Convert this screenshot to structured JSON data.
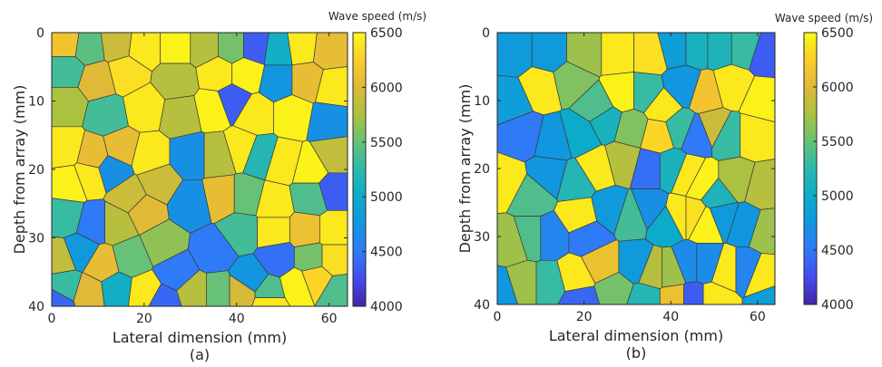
{
  "chart_data": [
    {
      "type": "heatmap",
      "panel_label": "(a)",
      "xlabel": "Lateral dimension (mm)",
      "ylabel": "Depth from array (mm)",
      "xlim": [
        0,
        64
      ],
      "ylim": [
        0,
        40
      ],
      "y_reversed": true,
      "xticks": [
        "0",
        "20",
        "40",
        "60"
      ],
      "yticks": [
        "0",
        "10",
        "20",
        "30",
        "40"
      ],
      "colorbar": {
        "title": "Wave speed (m/s)",
        "range": [
          4000,
          6500
        ],
        "ticks": [
          "4000",
          "4500",
          "5000",
          "5500",
          "6000",
          "6500"
        ],
        "colormap": "parula"
      },
      "cells": [
        {
          "x": 3,
          "y": 1.5,
          "v": 6150
        },
        {
          "x": 8,
          "y": 2,
          "v": 5450
        },
        {
          "x": 14,
          "y": 1.5,
          "v": 5900
        },
        {
          "x": 20,
          "y": 2,
          "v": 6400
        },
        {
          "x": 27,
          "y": 2,
          "v": 6450
        },
        {
          "x": 33,
          "y": 2,
          "v": 5800
        },
        {
          "x": 39,
          "y": 2,
          "v": 5550
        },
        {
          "x": 44,
          "y": 2,
          "v": 4350
        },
        {
          "x": 49,
          "y": 2.5,
          "v": 5050
        },
        {
          "x": 54,
          "y": 2,
          "v": 6400
        },
        {
          "x": 60,
          "y": 2.5,
          "v": 6050
        },
        {
          "x": 3,
          "y": 5.5,
          "v": 5350
        },
        {
          "x": 10,
          "y": 7,
          "v": 6000
        },
        {
          "x": 16,
          "y": 6,
          "v": 6350
        },
        {
          "x": 27,
          "y": 7,
          "v": 5800
        },
        {
          "x": 36,
          "y": 6,
          "v": 6400
        },
        {
          "x": 42,
          "y": 6,
          "v": 6450
        },
        {
          "x": 49,
          "y": 7,
          "v": 4750
        },
        {
          "x": 55,
          "y": 7,
          "v": 6050
        },
        {
          "x": 61,
          "y": 8,
          "v": 6400
        },
        {
          "x": 3,
          "y": 10.5,
          "v": 5750
        },
        {
          "x": 12,
          "y": 12,
          "v": 5350
        },
        {
          "x": 20,
          "y": 11,
          "v": 6400
        },
        {
          "x": 28,
          "y": 12,
          "v": 5800
        },
        {
          "x": 35,
          "y": 11,
          "v": 6450
        },
        {
          "x": 39,
          "y": 10,
          "v": 4350
        },
        {
          "x": 44,
          "y": 12,
          "v": 6400
        },
        {
          "x": 52,
          "y": 12,
          "v": 6450
        },
        {
          "x": 60,
          "y": 13,
          "v": 4700
        },
        {
          "x": 3,
          "y": 17,
          "v": 6400
        },
        {
          "x": 9,
          "y": 18,
          "v": 6050
        },
        {
          "x": 15,
          "y": 17,
          "v": 6050
        },
        {
          "x": 21,
          "y": 18,
          "v": 6400
        },
        {
          "x": 30,
          "y": 18,
          "v": 4700
        },
        {
          "x": 36,
          "y": 18,
          "v": 5800
        },
        {
          "x": 41,
          "y": 17,
          "v": 6400
        },
        {
          "x": 45,
          "y": 18,
          "v": 5200
        },
        {
          "x": 50,
          "y": 19,
          "v": 6400
        },
        {
          "x": 56,
          "y": 20,
          "v": 6450
        },
        {
          "x": 61,
          "y": 18,
          "v": 5850
        },
        {
          "x": 4,
          "y": 22,
          "v": 6450
        },
        {
          "x": 8,
          "y": 21,
          "v": 6400
        },
        {
          "x": 13,
          "y": 20,
          "v": 4700
        },
        {
          "x": 17,
          "y": 24,
          "v": 5900
        },
        {
          "x": 23,
          "y": 22,
          "v": 5900
        },
        {
          "x": 30,
          "y": 25,
          "v": 4700
        },
        {
          "x": 37,
          "y": 24,
          "v": 6050
        },
        {
          "x": 42,
          "y": 24,
          "v": 5500
        },
        {
          "x": 48,
          "y": 25,
          "v": 6400
        },
        {
          "x": 56,
          "y": 24,
          "v": 5400
        },
        {
          "x": 61,
          "y": 23,
          "v": 4350
        },
        {
          "x": 3,
          "y": 27,
          "v": 5300
        },
        {
          "x": 9,
          "y": 28,
          "v": 4500
        },
        {
          "x": 14,
          "y": 28,
          "v": 5800
        },
        {
          "x": 20,
          "y": 26,
          "v": 6000
        },
        {
          "x": 24,
          "y": 31,
          "v": 5650
        },
        {
          "x": 35,
          "y": 32,
          "v": 4500
        },
        {
          "x": 41,
          "y": 29,
          "v": 5350
        },
        {
          "x": 48,
          "y": 29,
          "v": 6400
        },
        {
          "x": 55,
          "y": 29,
          "v": 6100
        },
        {
          "x": 61,
          "y": 29,
          "v": 6400
        },
        {
          "x": 2,
          "y": 33,
          "v": 5850
        },
        {
          "x": 6,
          "y": 32,
          "v": 4800
        },
        {
          "x": 11,
          "y": 34,
          "v": 6050
        },
        {
          "x": 17,
          "y": 33,
          "v": 5500
        },
        {
          "x": 27,
          "y": 35,
          "v": 4500
        },
        {
          "x": 36,
          "y": 38,
          "v": 5500
        },
        {
          "x": 43,
          "y": 36,
          "v": 4750
        },
        {
          "x": 49,
          "y": 33,
          "v": 4450
        },
        {
          "x": 56,
          "y": 33,
          "v": 5550
        },
        {
          "x": 61,
          "y": 33,
          "v": 6350
        },
        {
          "x": 3,
          "y": 37,
          "v": 5300
        },
        {
          "x": 8,
          "y": 38,
          "v": 6000
        },
        {
          "x": 14,
          "y": 37.5,
          "v": 5050
        },
        {
          "x": 20,
          "y": 38,
          "v": 6400
        },
        {
          "x": 31,
          "y": 38,
          "v": 5800
        },
        {
          "x": 41,
          "y": 38,
          "v": 5950
        },
        {
          "x": 47,
          "y": 38,
          "v": 5400
        },
        {
          "x": 53,
          "y": 37,
          "v": 6450
        },
        {
          "x": 57,
          "y": 36,
          "v": 6300
        },
        {
          "x": 62,
          "y": 38,
          "v": 5400
        },
        {
          "x": 1,
          "y": 39.5,
          "v": 4400
        },
        {
          "x": 24,
          "y": 39.5,
          "v": 4400
        },
        {
          "x": 47,
          "y": 39.5,
          "v": 6400
        }
      ]
    },
    {
      "type": "heatmap",
      "panel_label": "(b)",
      "xlabel": "Lateral dimension (mm)",
      "ylabel": "Depth from array (mm)",
      "xlim": [
        0,
        64
      ],
      "ylim": [
        0,
        40
      ],
      "y_reversed": true,
      "xticks": [
        "0",
        "20",
        "40",
        "60"
      ],
      "yticks": [
        "0",
        "10",
        "20",
        "30",
        "40"
      ],
      "colorbar": {
        "title": "Wave speed (m/s)",
        "range": [
          4000,
          6500
        ],
        "ticks": [
          "4000",
          "4500",
          "5000",
          "5500",
          "6000",
          "6500"
        ],
        "colormap": "parula"
      },
      "cells": [
        {
          "x": 4,
          "y": 3,
          "v": 4800
        },
        {
          "x": 12,
          "y": 3,
          "v": 4800
        },
        {
          "x": 20,
          "y": 3,
          "v": 5700
        },
        {
          "x": 28,
          "y": 3,
          "v": 6400
        },
        {
          "x": 35,
          "y": 3,
          "v": 6350
        },
        {
          "x": 41,
          "y": 2,
          "v": 4850
        },
        {
          "x": 46,
          "y": 2,
          "v": 5100
        },
        {
          "x": 51,
          "y": 2,
          "v": 5150
        },
        {
          "x": 57,
          "y": 2,
          "v": 5300
        },
        {
          "x": 62,
          "y": 3,
          "v": 4350
        },
        {
          "x": 3,
          "y": 10,
          "v": 4850
        },
        {
          "x": 10,
          "y": 8,
          "v": 6400
        },
        {
          "x": 17,
          "y": 7,
          "v": 5600
        },
        {
          "x": 23,
          "y": 11,
          "v": 5400
        },
        {
          "x": 29,
          "y": 9,
          "v": 6450
        },
        {
          "x": 34,
          "y": 9,
          "v": 5300
        },
        {
          "x": 38,
          "y": 11,
          "v": 6400
        },
        {
          "x": 43,
          "y": 8,
          "v": 4750
        },
        {
          "x": 48,
          "y": 9,
          "v": 6150
        },
        {
          "x": 54,
          "y": 8,
          "v": 6400
        },
        {
          "x": 61,
          "y": 10,
          "v": 6450
        },
        {
          "x": 2,
          "y": 22,
          "v": 6400
        },
        {
          "x": 6,
          "y": 15,
          "v": 4500
        },
        {
          "x": 13,
          "y": 16,
          "v": 4750
        },
        {
          "x": 19,
          "y": 15,
          "v": 5000
        },
        {
          "x": 25,
          "y": 13,
          "v": 5100
        },
        {
          "x": 31,
          "y": 14,
          "v": 5600
        },
        {
          "x": 37,
          "y": 15,
          "v": 6300
        },
        {
          "x": 42,
          "y": 14,
          "v": 5300
        },
        {
          "x": 46,
          "y": 15,
          "v": 4500
        },
        {
          "x": 50,
          "y": 14,
          "v": 5900
        },
        {
          "x": 53,
          "y": 15,
          "v": 5300
        },
        {
          "x": 59,
          "y": 15,
          "v": 6400
        },
        {
          "x": 8,
          "y": 24,
          "v": 5400
        },
        {
          "x": 12,
          "y": 21,
          "v": 4750
        },
        {
          "x": 18,
          "y": 22,
          "v": 5200
        },
        {
          "x": 23,
          "y": 20,
          "v": 6400
        },
        {
          "x": 29,
          "y": 19,
          "v": 5800
        },
        {
          "x": 35,
          "y": 20,
          "v": 4450
        },
        {
          "x": 40,
          "y": 20,
          "v": 5100
        },
        {
          "x": 44,
          "y": 21,
          "v": 6400
        },
        {
          "x": 47,
          "y": 22,
          "v": 6450
        },
        {
          "x": 51,
          "y": 24,
          "v": 5150
        },
        {
          "x": 55,
          "y": 22,
          "v": 5750
        },
        {
          "x": 61,
          "y": 23,
          "v": 5800
        },
        {
          "x": 3,
          "y": 31,
          "v": 5700
        },
        {
          "x": 8,
          "y": 30,
          "v": 5400
        },
        {
          "x": 12,
          "y": 30,
          "v": 4600
        },
        {
          "x": 19,
          "y": 27,
          "v": 6400
        },
        {
          "x": 21,
          "y": 30,
          "v": 4500
        },
        {
          "x": 26,
          "y": 26,
          "v": 4800
        },
        {
          "x": 31,
          "y": 27,
          "v": 5350
        },
        {
          "x": 35,
          "y": 26,
          "v": 4700
        },
        {
          "x": 39,
          "y": 28,
          "v": 5000
        },
        {
          "x": 42,
          "y": 27,
          "v": 6400
        },
        {
          "x": 45,
          "y": 27,
          "v": 6350
        },
        {
          "x": 48,
          "y": 28,
          "v": 6450
        },
        {
          "x": 52,
          "y": 27,
          "v": 4800
        },
        {
          "x": 57,
          "y": 28,
          "v": 4750
        },
        {
          "x": 62,
          "y": 29,
          "v": 5700
        },
        {
          "x": 1,
          "y": 38,
          "v": 4750
        },
        {
          "x": 6,
          "y": 37,
          "v": 5700
        },
        {
          "x": 12,
          "y": 37,
          "v": 5300
        },
        {
          "x": 18,
          "y": 36,
          "v": 6400
        },
        {
          "x": 24,
          "y": 34,
          "v": 6100
        },
        {
          "x": 27,
          "y": 38,
          "v": 5550
        },
        {
          "x": 32,
          "y": 34,
          "v": 4800
        },
        {
          "x": 36,
          "y": 35,
          "v": 5800
        },
        {
          "x": 40,
          "y": 35,
          "v": 5700
        },
        {
          "x": 44,
          "y": 34,
          "v": 4650
        },
        {
          "x": 48,
          "y": 34,
          "v": 4650
        },
        {
          "x": 53,
          "y": 35,
          "v": 6400
        },
        {
          "x": 57,
          "y": 35,
          "v": 4600
        },
        {
          "x": 61,
          "y": 36,
          "v": 6400
        },
        {
          "x": 19,
          "y": 39.5,
          "v": 4400
        },
        {
          "x": 34,
          "y": 39.5,
          "v": 5200
        },
        {
          "x": 41,
          "y": 39.5,
          "v": 6100
        },
        {
          "x": 45,
          "y": 39.5,
          "v": 4350
        },
        {
          "x": 50,
          "y": 39.5,
          "v": 6400
        },
        {
          "x": 63,
          "y": 39.5,
          "v": 4850
        }
      ]
    }
  ]
}
